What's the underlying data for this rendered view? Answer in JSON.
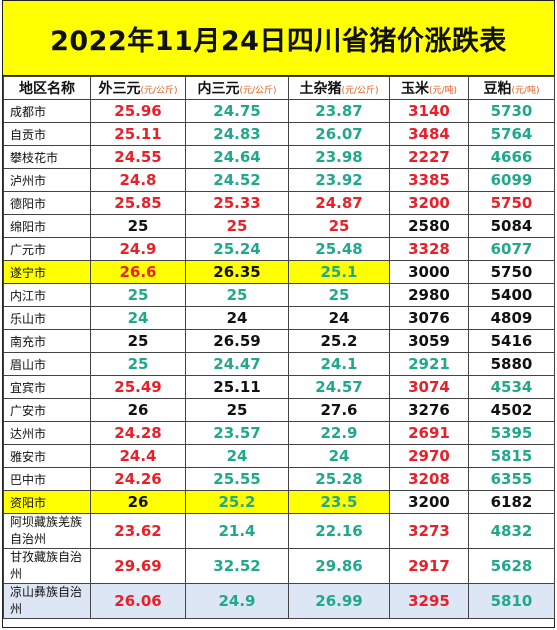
{
  "title": "2022年11月24日四川省猪价涨跌表",
  "headers": [
    {
      "label": "地区名称",
      "unit": ""
    },
    {
      "label": "外三元",
      "unit": "(元/公斤)"
    },
    {
      "label": "内三元",
      "unit": "(元/公斤)"
    },
    {
      "label": "土杂猪",
      "unit": "(元/公斤)"
    },
    {
      "label": "玉米",
      "unit": "(元/吨)"
    },
    {
      "label": "豆粕",
      "unit": "(元/吨)"
    }
  ],
  "colors": {
    "up": "#e8202a",
    "down": "#21a88c",
    "flat": "#111111",
    "highlight": "#ffff00",
    "blue_row": "#dde6f4"
  },
  "rows": [
    {
      "name": "成都市",
      "cells": [
        {
          "v": "25.96",
          "c": "red"
        },
        {
          "v": "24.75",
          "c": "green"
        },
        {
          "v": "23.87",
          "c": "green"
        },
        {
          "v": "3140",
          "c": "red"
        },
        {
          "v": "5730",
          "c": "green"
        }
      ]
    },
    {
      "name": "自贡市",
      "cells": [
        {
          "v": "25.11",
          "c": "red"
        },
        {
          "v": "24.83",
          "c": "green"
        },
        {
          "v": "26.07",
          "c": "green"
        },
        {
          "v": "3484",
          "c": "red"
        },
        {
          "v": "5764",
          "c": "green"
        }
      ]
    },
    {
      "name": "攀枝花市",
      "cells": [
        {
          "v": "24.55",
          "c": "red"
        },
        {
          "v": "24.64",
          "c": "green"
        },
        {
          "v": "23.98",
          "c": "green"
        },
        {
          "v": "2227",
          "c": "red"
        },
        {
          "v": "4666",
          "c": "green"
        }
      ]
    },
    {
      "name": "泸州市",
      "cells": [
        {
          "v": "24.8",
          "c": "red"
        },
        {
          "v": "24.52",
          "c": "green"
        },
        {
          "v": "23.92",
          "c": "green"
        },
        {
          "v": "3385",
          "c": "red"
        },
        {
          "v": "6099",
          "c": "green"
        }
      ]
    },
    {
      "name": "德阳市",
      "cells": [
        {
          "v": "25.85",
          "c": "red"
        },
        {
          "v": "25.33",
          "c": "red"
        },
        {
          "v": "24.87",
          "c": "red"
        },
        {
          "v": "3200",
          "c": "red"
        },
        {
          "v": "5750",
          "c": "red"
        }
      ]
    },
    {
      "name": "绵阳市",
      "cells": [
        {
          "v": "25",
          "c": "black"
        },
        {
          "v": "25",
          "c": "red"
        },
        {
          "v": "25",
          "c": "red"
        },
        {
          "v": "2580",
          "c": "black"
        },
        {
          "v": "5084",
          "c": "black"
        }
      ]
    },
    {
      "name": "广元市",
      "cells": [
        {
          "v": "24.9",
          "c": "red"
        },
        {
          "v": "25.24",
          "c": "green"
        },
        {
          "v": "25.48",
          "c": "green"
        },
        {
          "v": "3328",
          "c": "red"
        },
        {
          "v": "6077",
          "c": "green"
        }
      ]
    },
    {
      "name": "遂宁市",
      "hl": true,
      "cells": [
        {
          "v": "26.6",
          "c": "red"
        },
        {
          "v": "26.35",
          "c": "black"
        },
        {
          "v": "25.1",
          "c": "green"
        },
        {
          "v": "3000",
          "c": "black"
        },
        {
          "v": "5750",
          "c": "black"
        }
      ]
    },
    {
      "name": "内江市",
      "cells": [
        {
          "v": "25",
          "c": "green"
        },
        {
          "v": "25",
          "c": "green"
        },
        {
          "v": "25",
          "c": "green"
        },
        {
          "v": "2980",
          "c": "black"
        },
        {
          "v": "5400",
          "c": "black"
        }
      ]
    },
    {
      "name": "乐山市",
      "cells": [
        {
          "v": "24",
          "c": "green"
        },
        {
          "v": "24",
          "c": "black"
        },
        {
          "v": "24",
          "c": "black"
        },
        {
          "v": "3076",
          "c": "black"
        },
        {
          "v": "4809",
          "c": "black"
        }
      ]
    },
    {
      "name": "南充市",
      "cells": [
        {
          "v": "25",
          "c": "black"
        },
        {
          "v": "26.59",
          "c": "black"
        },
        {
          "v": "25.2",
          "c": "black"
        },
        {
          "v": "3059",
          "c": "black"
        },
        {
          "v": "5416",
          "c": "black"
        }
      ]
    },
    {
      "name": "眉山市",
      "cells": [
        {
          "v": "25",
          "c": "green"
        },
        {
          "v": "24.47",
          "c": "green"
        },
        {
          "v": "24.1",
          "c": "green"
        },
        {
          "v": "2921",
          "c": "green"
        },
        {
          "v": "5880",
          "c": "black"
        }
      ]
    },
    {
      "name": "宜宾市",
      "cells": [
        {
          "v": "25.49",
          "c": "red"
        },
        {
          "v": "25.11",
          "c": "black"
        },
        {
          "v": "24.57",
          "c": "green"
        },
        {
          "v": "3074",
          "c": "red"
        },
        {
          "v": "4534",
          "c": "green"
        }
      ]
    },
    {
      "name": "广安市",
      "cells": [
        {
          "v": "26",
          "c": "black"
        },
        {
          "v": "25",
          "c": "black"
        },
        {
          "v": "27.6",
          "c": "black"
        },
        {
          "v": "3276",
          "c": "black"
        },
        {
          "v": "4502",
          "c": "black"
        }
      ]
    },
    {
      "name": "达州市",
      "cells": [
        {
          "v": "24.28",
          "c": "red"
        },
        {
          "v": "23.57",
          "c": "green"
        },
        {
          "v": "22.9",
          "c": "green"
        },
        {
          "v": "2691",
          "c": "red"
        },
        {
          "v": "5395",
          "c": "green"
        }
      ]
    },
    {
      "name": "雅安市",
      "cells": [
        {
          "v": "24.4",
          "c": "red"
        },
        {
          "v": "24",
          "c": "green"
        },
        {
          "v": "24",
          "c": "green"
        },
        {
          "v": "2970",
          "c": "red"
        },
        {
          "v": "5815",
          "c": "green"
        }
      ]
    },
    {
      "name": "巴中市",
      "cells": [
        {
          "v": "24.26",
          "c": "red"
        },
        {
          "v": "25.55",
          "c": "green"
        },
        {
          "v": "25.28",
          "c": "green"
        },
        {
          "v": "3208",
          "c": "red"
        },
        {
          "v": "6355",
          "c": "green"
        }
      ]
    },
    {
      "name": "资阳市",
      "hl": true,
      "cells": [
        {
          "v": "26",
          "c": "black"
        },
        {
          "v": "25.2",
          "c": "green"
        },
        {
          "v": "23.5",
          "c": "green"
        },
        {
          "v": "3200",
          "c": "black"
        },
        {
          "v": "6182",
          "c": "black"
        }
      ]
    },
    {
      "name": "阿坝藏族羌族自治州",
      "tall": true,
      "cells": [
        {
          "v": "23.62",
          "c": "red"
        },
        {
          "v": "21.4",
          "c": "green"
        },
        {
          "v": "22.16",
          "c": "green"
        },
        {
          "v": "3273",
          "c": "red"
        },
        {
          "v": "4832",
          "c": "green"
        }
      ]
    },
    {
      "name": "甘孜藏族自治州",
      "tall": true,
      "cells": [
        {
          "v": "29.69",
          "c": "red"
        },
        {
          "v": "32.52",
          "c": "green"
        },
        {
          "v": "29.86",
          "c": "green"
        },
        {
          "v": "2917",
          "c": "red"
        },
        {
          "v": "5628",
          "c": "green"
        }
      ]
    },
    {
      "name": "凉山彝族自治州",
      "tall": true,
      "blue": true,
      "cells": [
        {
          "v": "26.06",
          "c": "red"
        },
        {
          "v": "24.9",
          "c": "green"
        },
        {
          "v": "26.99",
          "c": "green"
        },
        {
          "v": "3295",
          "c": "red"
        },
        {
          "v": "5810",
          "c": "green"
        }
      ]
    }
  ]
}
